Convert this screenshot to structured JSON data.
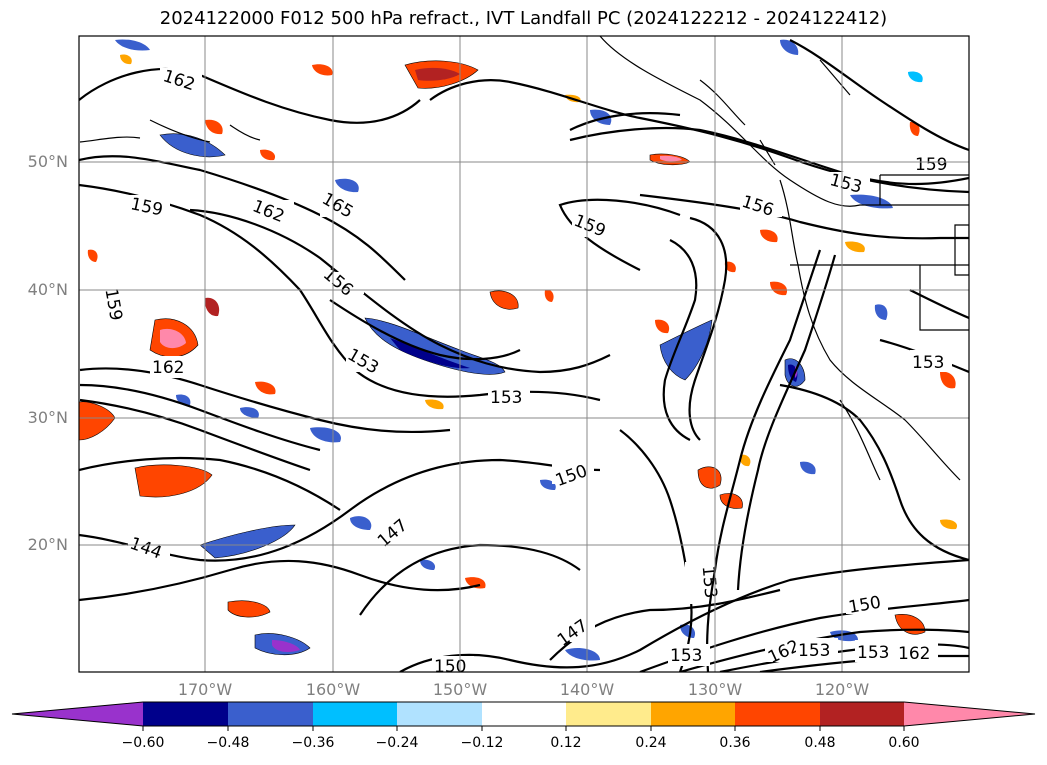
{
  "title": "2024122000 F012 500 hPa refract., IVT Landfall PC (2024122212 - 2024122412)",
  "lat_labels": [
    "50°N",
    "40°N",
    "30°N",
    "20°N"
  ],
  "lon_labels": [
    "170°W",
    "160°W",
    "150°W",
    "140°W",
    "130°W",
    "120°W"
  ],
  "colorbar": {
    "ticks": [
      "−0.60",
      "−0.48",
      "−0.36",
      "−0.24",
      "−0.12",
      "0.12",
      "0.24",
      "0.36",
      "0.48",
      "0.60"
    ],
    "colors": [
      "#9932cc",
      "#00008b",
      "#3a5fcd",
      "#00bfff",
      "#b0e2ff",
      "#ffffff",
      "#ffeb8c",
      "#ffa500",
      "#ff4500",
      "#b22222",
      "#ff88aa"
    ]
  },
  "contour_labels": [
    "162",
    "159",
    "162",
    "165",
    "159",
    "156",
    "153",
    "159",
    "159",
    "156",
    "153",
    "162",
    "153",
    "153",
    "150",
    "147",
    "144",
    "147",
    "153",
    "150",
    "153",
    "162",
    "153",
    "153",
    "162",
    "150"
  ]
}
